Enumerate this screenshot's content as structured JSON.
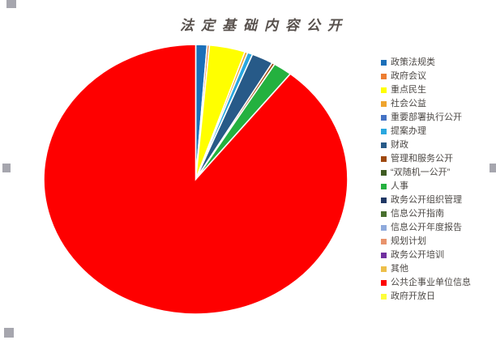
{
  "chart_data": {
    "type": "pie",
    "title": "法定基础内容公开",
    "title_color": "#57504C",
    "legend_position": "right",
    "legend_text_color": "#4C4845",
    "start_angle_deg": 0,
    "direction": "clockwise",
    "categories": [
      "政策法规类",
      "政府会议",
      "重点民生",
      "社会公益",
      "重要部署执行公开",
      "提案办理",
      "财政",
      "管理和服务公开",
      "“双随机一公开”",
      "人事",
      "政务公开组织管理",
      "信息公开指南",
      "信息公开年度报告",
      "规划计划",
      "政务公开培训",
      "其他",
      "公共企事业单位信息",
      "政府开放日"
    ],
    "values_percent": [
      1.2,
      0.25,
      3.8,
      0.3,
      0,
      0.55,
      2.3,
      0.3,
      0,
      2.0,
      0,
      0,
      0,
      0,
      0,
      0,
      89.3,
      0
    ],
    "colors": [
      "#1B6FB9",
      "#ED7D31",
      "#FFFF00",
      "#EFA42E",
      "#4472C4",
      "#29A7DF",
      "#275A88",
      "#9E480E",
      "#3E5B22",
      "#24B13F",
      "#203864",
      "#486F2E",
      "#8FAADC",
      "#E8936C",
      "#7030A0",
      "#EDBF4A",
      "#FE0000",
      "#FDFD3A"
    ]
  },
  "ui": {
    "selection_handle_color": "#A6A6AE"
  }
}
